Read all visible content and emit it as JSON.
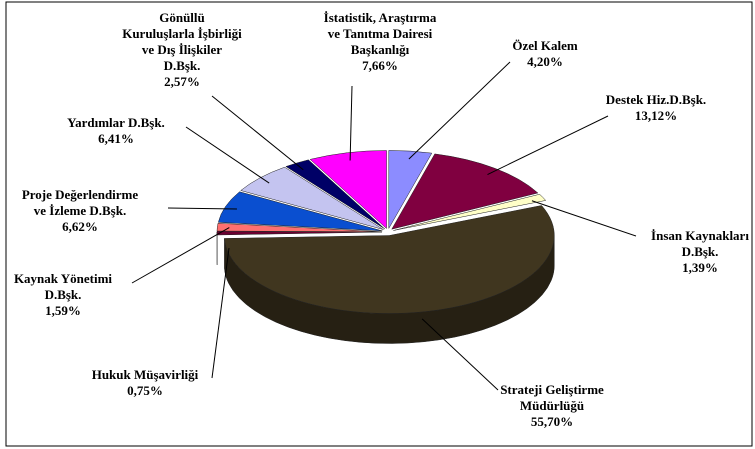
{
  "chart_data": {
    "type": "pie3d",
    "categories": [
      [
        "Özel Kalem"
      ],
      [
        "Destek Hiz.D.Bşk."
      ],
      [
        "İnsan Kaynakları",
        "D.Bşk."
      ],
      [
        "Strateji  Geliştirme",
        "Müdürlüğü"
      ],
      [
        "Hukuk Müşavirliği"
      ],
      [
        "Kaynak Yönetimi",
        "D.Bşk."
      ],
      [
        "Proje Değerlendirme",
        "ve İzleme  D.Bşk."
      ],
      [
        "Yardımlar D.Bşk."
      ],
      [
        "Gönüllü",
        "Kuruluşlarla İşbirliği",
        "ve Dış İlişkiler",
        "D.Bşk."
      ],
      [
        "İstatistik, Araştırma",
        "ve Tanıtma Dairesi",
        "Başkanlığı"
      ]
    ],
    "values": [
      4.2,
      13.12,
      1.39,
      55.7,
      0.75,
      1.59,
      6.62,
      6.41,
      2.57,
      7.66
    ],
    "value_labels": [
      "4,20%",
      "13,12%",
      "1,39%",
      "55,70%",
      "0,75%",
      "1,59%",
      "6,62%",
      "6,41%",
      "2,57%",
      "7,66%"
    ],
    "colors": [
      "#8c8cff",
      "#800040",
      "#ffffc8",
      "#40361f",
      "#6a0030",
      "#ff7070",
      "#0a4fd0",
      "#c4c4f0",
      "#000066",
      "#ff00ff"
    ]
  }
}
